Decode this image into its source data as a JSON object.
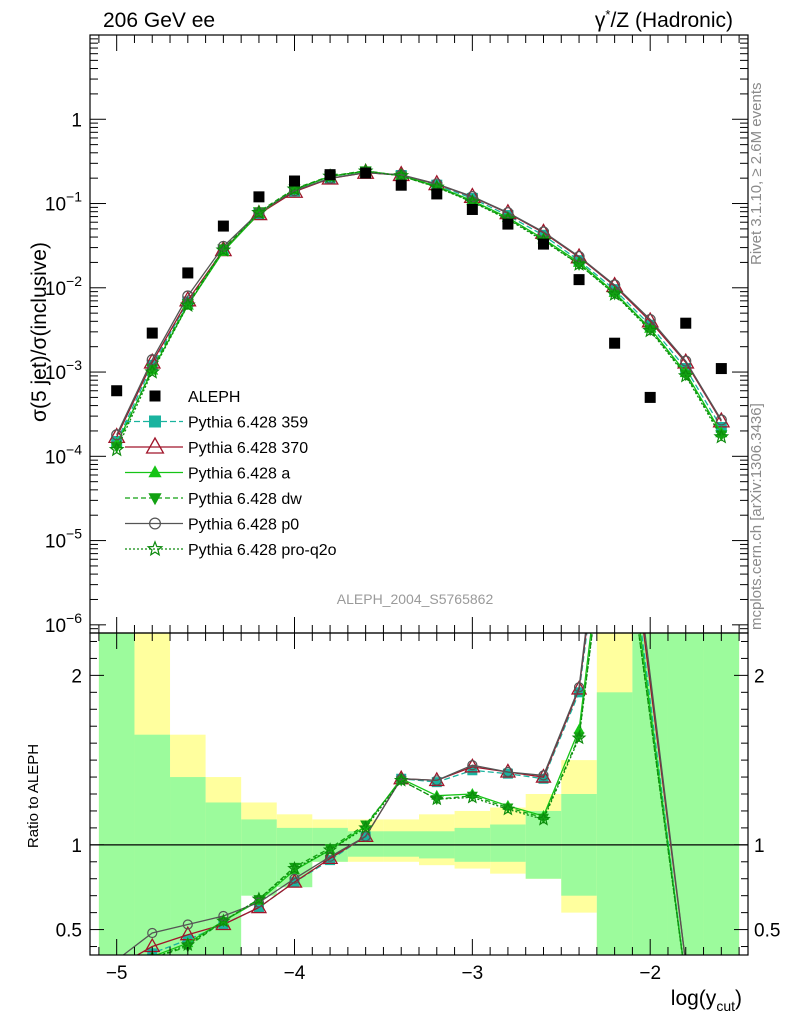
{
  "header": {
    "left": "206 GeV ee",
    "right_pre": "γ",
    "right_sup": "*",
    "right_post": "/Z (Hadronic)"
  },
  "side": {
    "rivet": "Rivet 3.1.10, ≥ 2.6M events",
    "mcplots": "mcplots.cern.ch [arXiv:1306.3436]"
  },
  "watermark": "ALEPH_2004_S5765862",
  "axes": {
    "ylabel_main": "σ(5 jet)/σ(inclusive)",
    "ylabel_ratio": "Ratio to ALEPH",
    "xlabel_base": "log(y",
    "xlabel_sub": "cut",
    "xlabel_close": ")"
  },
  "chart_data": [
    {
      "type": "line",
      "panel": "main",
      "yscale": "log",
      "xlim": [
        -5.15,
        -1.45
      ],
      "ylim": [
        8e-07,
        10
      ],
      "x_ticks": [
        -5,
        -4,
        -3,
        -2
      ],
      "y_ticks": [
        {
          "v": 1e-06,
          "base": "10",
          "exp": "−6"
        },
        {
          "v": 1e-05,
          "base": "10",
          "exp": "−5"
        },
        {
          "v": 0.0001,
          "base": "10",
          "exp": "−4"
        },
        {
          "v": 0.001,
          "base": "10",
          "exp": "−3"
        },
        {
          "v": 0.01,
          "base": "10",
          "exp": "−2"
        },
        {
          "v": 0.1,
          "base": "10",
          "exp": "−1"
        },
        {
          "v": 1,
          "base": "1",
          "exp": ""
        }
      ],
      "x": [
        -5.0,
        -4.8,
        -4.6,
        -4.4,
        -4.2,
        -4.0,
        -3.8,
        -3.6,
        -3.4,
        -3.2,
        -3.0,
        -2.8,
        -2.6,
        -2.4,
        -2.2,
        -2.0,
        -1.8,
        -1.6
      ],
      "data": {
        "name": "ALEPH",
        "values": [
          0.0006,
          0.0029,
          0.015,
          0.054,
          0.12,
          0.185,
          0.22,
          0.23,
          0.165,
          0.13,
          0.085,
          0.057,
          0.033,
          0.0125,
          0.0022,
          0.0005,
          0.0038,
          0.0011
        ]
      },
      "series": [
        {
          "name": "Pythia 6.428 359",
          "color": "#1ab39f",
          "dash": "6,3",
          "marker": "square",
          "values": [
            0.00015,
            0.0012,
            0.0068,
            0.028,
            0.076,
            0.14,
            0.2,
            0.235,
            0.215,
            0.165,
            0.115,
            0.072,
            0.042,
            0.021,
            0.0095,
            0.0036,
            0.0011,
            0.00022
          ]
        },
        {
          "name": "Pythia 6.428 370",
          "color": "#a0152a",
          "dash": "",
          "marker": "triangle-open",
          "values": [
            0.00017,
            0.0013,
            0.0071,
            0.028,
            0.075,
            0.138,
            0.198,
            0.232,
            0.218,
            0.17,
            0.12,
            0.077,
            0.045,
            0.023,
            0.0105,
            0.004,
            0.0013,
            0.00026
          ]
        },
        {
          "name": "Pythia 6.428 a",
          "color": "#16c416",
          "dash": "",
          "marker": "triangle",
          "values": [
            0.00014,
            0.00105,
            0.0062,
            0.027,
            0.076,
            0.146,
            0.21,
            0.242,
            0.215,
            0.16,
            0.108,
            0.068,
            0.038,
            0.02,
            0.0088,
            0.0033,
            0.00098,
            0.00019
          ]
        },
        {
          "name": "Pythia 6.428 dw",
          "color": "#12a112",
          "dash": "5,3",
          "marker": "triangle-down",
          "values": [
            0.00013,
            0.0011,
            0.0065,
            0.029,
            0.08,
            0.15,
            0.212,
            0.245,
            0.212,
            0.157,
            0.105,
            0.066,
            0.037,
            0.019,
            0.0085,
            0.0032,
            0.00093,
            0.00018
          ]
        },
        {
          "name": "Pythia 6.428 p0",
          "color": "#555555",
          "dash": "",
          "marker": "circle-open",
          "values": [
            0.00018,
            0.0014,
            0.008,
            0.031,
            0.078,
            0.142,
            0.2,
            0.232,
            0.219,
            0.171,
            0.121,
            0.078,
            0.046,
            0.0235,
            0.0108,
            0.0042,
            0.00135,
            0.00027
          ]
        },
        {
          "name": "Pythia 6.428 pro-q2o",
          "color": "#0c8a0c",
          "dash": "2,2",
          "marker": "star",
          "values": [
            0.00012,
            0.001,
            0.0062,
            0.028,
            0.078,
            0.148,
            0.21,
            0.242,
            0.213,
            0.156,
            0.104,
            0.065,
            0.036,
            0.019,
            0.0084,
            0.0031,
            0.0009,
            0.00017
          ]
        }
      ]
    },
    {
      "type": "line",
      "panel": "ratio",
      "xlim": [
        -5.15,
        -1.45
      ],
      "ylim": [
        0.35,
        2.25
      ],
      "y_ticks": [
        0.5,
        1,
        2
      ],
      "reference_line": 1,
      "bands": {
        "edges": [
          -5.1,
          -4.9,
          -4.7,
          -4.5,
          -4.3,
          -4.1,
          -3.9,
          -3.7,
          -3.5,
          -3.3,
          -3.1,
          -2.9,
          -2.7,
          -2.5,
          -2.3,
          -2.1,
          -1.9,
          -1.7,
          -1.5
        ],
        "total": [
          [
            0.0,
            5.0
          ],
          [
            0.0,
            2.3
          ],
          [
            0.65,
            1.65
          ],
          [
            0.8,
            1.4
          ],
          [
            0.85,
            1.25
          ],
          [
            0.88,
            1.18
          ],
          [
            0.9,
            1.15
          ],
          [
            0.9,
            1.15
          ],
          [
            0.9,
            1.15
          ],
          [
            0.88,
            1.18
          ],
          [
            0.86,
            1.2
          ],
          [
            0.83,
            1.22
          ],
          [
            0.8,
            1.3
          ],
          [
            0.6,
            1.5
          ],
          [
            0.0,
            3.0
          ],
          [
            0.0,
            5.0
          ],
          [
            0.0,
            5.0
          ],
          [
            0.0,
            5.0
          ]
        ],
        "stat": [
          [
            0.0,
            5.0
          ],
          [
            0.0,
            1.65
          ],
          [
            0.0,
            1.4
          ],
          [
            0.0,
            1.25
          ],
          [
            0.7,
            1.15
          ],
          [
            0.75,
            1.1
          ],
          [
            0.9,
            1.1
          ],
          [
            0.93,
            1.08
          ],
          [
            0.93,
            1.08
          ],
          [
            0.92,
            1.08
          ],
          [
            0.9,
            1.1
          ],
          [
            0.9,
            1.12
          ],
          [
            0.8,
            1.2
          ],
          [
            0.7,
            1.3
          ],
          [
            0.0,
            1.9
          ],
          [
            0.0,
            5.0
          ],
          [
            0.0,
            5.0
          ],
          [
            0.0,
            5.0
          ]
        ]
      },
      "x": [
        -5.0,
        -4.8,
        -4.6,
        -4.4,
        -4.2,
        -4.0,
        -3.8,
        -3.6,
        -3.4,
        -3.2,
        -3.0,
        -2.8,
        -2.6,
        -2.4,
        -2.2,
        -1.8
      ],
      "series": [
        {
          "name": "Pythia 6.428 359",
          "values": [
            0.25,
            0.36,
            0.44,
            0.53,
            0.63,
            0.78,
            0.91,
            1.05,
            1.39,
            1.37,
            1.44,
            1.42,
            1.39,
            1.9,
            3.5,
            0.2
          ]
        },
        {
          "name": "Pythia 6.428 370",
          "values": [
            0.28,
            0.4,
            0.47,
            0.53,
            0.63,
            0.78,
            0.92,
            1.05,
            1.39,
            1.38,
            1.46,
            1.43,
            1.4,
            1.92,
            3.6,
            0.3
          ]
        },
        {
          "name": "Pythia 6.428 a",
          "values": [
            0.23,
            0.34,
            0.42,
            0.55,
            0.67,
            0.85,
            0.97,
            1.11,
            1.39,
            1.29,
            1.3,
            1.23,
            1.17,
            1.68,
            3.4,
            0.2
          ]
        },
        {
          "name": "Pythia 6.428 dw",
          "values": [
            0.22,
            0.33,
            0.4,
            0.55,
            0.68,
            0.87,
            0.98,
            1.12,
            1.38,
            1.27,
            1.29,
            1.22,
            1.16,
            1.64,
            3.3,
            0.2
          ]
        },
        {
          "name": "Pythia 6.428 p0",
          "values": [
            0.32,
            0.48,
            0.53,
            0.58,
            0.66,
            0.8,
            0.93,
            1.05,
            1.39,
            1.38,
            1.47,
            1.43,
            1.41,
            1.93,
            3.7,
            0.3
          ]
        },
        {
          "name": "Pythia 6.428 pro-q2o",
          "values": [
            0.22,
            0.33,
            0.41,
            0.55,
            0.68,
            0.86,
            0.97,
            1.1,
            1.38,
            1.27,
            1.28,
            1.21,
            1.15,
            1.63,
            3.3,
            0.2
          ]
        }
      ]
    }
  ]
}
